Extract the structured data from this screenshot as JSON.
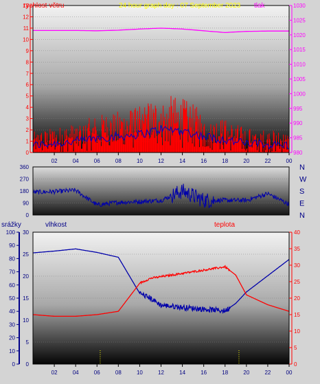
{
  "charts": {
    "wind_pressure": {
      "title": "24 hour graph day : 07 September 2023",
      "left_label": "rychlost větru",
      "right_label": "tlak",
      "left_unit_mark": "m/s",
      "left_ticks": [
        "0",
        "1",
        "2",
        "3",
        "4",
        "5",
        "6",
        "7",
        "8",
        "9",
        "10",
        "11",
        "12",
        "13"
      ],
      "right_ticks": [
        "980",
        "985",
        "990",
        "995",
        "1000",
        "1005",
        "1010",
        "1015",
        "1020",
        "1025",
        "1030"
      ],
      "colors": {
        "wind": "#ff0000",
        "gust": "#0000cc",
        "pressure": "#ff00ff",
        "left_axis": "#ff0000",
        "right_axis": "#ff00ff",
        "title": "#ffff00"
      }
    },
    "direction": {
      "left_ticks": [
        "0",
        "90",
        "180",
        "270",
        "360"
      ],
      "compass": [
        "N",
        "W",
        "S",
        "E",
        "N"
      ],
      "colors": {
        "direction": "#0000aa",
        "compass": "#000088"
      }
    },
    "temp_humidity": {
      "rain_label": "srážky",
      "humidity_label": "vlhkost",
      "temp_label": "teplota",
      "rain_ticks": [
        "0",
        "10",
        "20",
        "30",
        "40",
        "50",
        "60",
        "70",
        "80",
        "90",
        "100"
      ],
      "humidity_ticks": [
        "0",
        "5",
        "10",
        "15",
        "20",
        "25",
        "30"
      ],
      "temp_ticks": [
        "0",
        "5",
        "10",
        "15",
        "20",
        "25",
        "30",
        "35",
        "40"
      ],
      "colors": {
        "humidity": "#0000aa",
        "temp": "#ff0000",
        "rain": "#ffff00",
        "rain_axis": "#000088",
        "temp_axis": "#ff0000"
      }
    },
    "x_ticks": [
      "02",
      "04",
      "06",
      "08",
      "10",
      "12",
      "14",
      "16",
      "18",
      "20",
      "22",
      "00"
    ]
  },
  "chart_data": [
    {
      "type": "line",
      "title": "24 hour graph day : 07 September 2023",
      "x": [
        0,
        2,
        4,
        6,
        8,
        10,
        12,
        14,
        16,
        18,
        20,
        22,
        24
      ],
      "series": [
        {
          "name": "rychlost větru",
          "values": [
            0.8,
            1.0,
            1.2,
            1.6,
            1.8,
            2.0,
            2.6,
            2.4,
            1.8,
            1.4,
            1.0,
            0.9,
            0.8
          ]
        },
        {
          "name": "tlak",
          "values": [
            1021.5,
            1021.5,
            1021.5,
            1021.4,
            1021.6,
            1022.0,
            1022.3,
            1022.0,
            1021.4,
            1020.8,
            1021.2,
            1021.3,
            1021.3
          ]
        }
      ],
      "ylim": [
        0,
        13
      ],
      "y2lim": [
        980,
        1030
      ]
    },
    {
      "type": "line",
      "x": [
        0,
        2,
        4,
        6,
        8,
        10,
        12,
        14,
        16,
        18,
        20,
        22,
        24
      ],
      "series": [
        {
          "values": [
            170,
            175,
            185,
            75,
            95,
            100,
            110,
            180,
            110,
            110,
            110,
            160,
            80
          ]
        }
      ],
      "ylim": [
        0,
        360
      ]
    },
    {
      "type": "line",
      "x": [
        0,
        2,
        4,
        6,
        8,
        10,
        11,
        12,
        14,
        16,
        18,
        19,
        20,
        22,
        24
      ],
      "series": [
        {
          "name": "vlhkost",
          "values": [
            25.3,
            25.7,
            26.2,
            25.4,
            24.3,
            16.1,
            15.0,
            13.4,
            12.9,
            12.5,
            12.1,
            13.8,
            16.4,
            20.1,
            23.8
          ]
        },
        {
          "name": "teplota",
          "values": [
            15.0,
            14.5,
            14.5,
            15.0,
            16.0,
            24.5,
            26.0,
            26.5,
            27.5,
            28.5,
            29.5,
            27.0,
            21.0,
            18.0,
            16.0
          ]
        }
      ],
      "ylim": [
        0,
        30
      ],
      "y2lim": [
        0,
        40
      ]
    }
  ]
}
